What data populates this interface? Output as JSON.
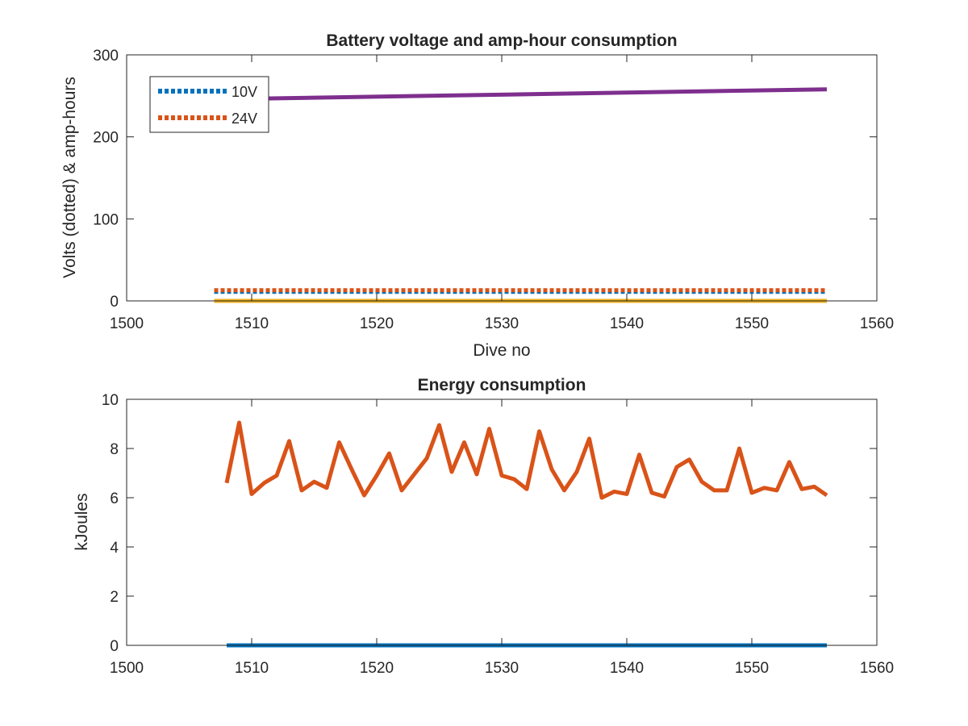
{
  "chart_data": [
    {
      "type": "line",
      "title": "Battery voltage and amp-hour consumption",
      "xlabel": "Dive no",
      "ylabel": "Volts (dotted) & amp-hours",
      "xlim": [
        1500,
        1560
      ],
      "ylim": [
        0,
        300
      ],
      "xticks": [
        1500,
        1510,
        1520,
        1530,
        1540,
        1550,
        1560
      ],
      "yticks": [
        0,
        100,
        200,
        300
      ],
      "legend_position": "top-left",
      "series": [
        {
          "name": "10V",
          "style": "dotted",
          "color": "#0072BD",
          "x": [
            1507,
            1556
          ],
          "y": [
            11,
            11
          ]
        },
        {
          "name": "24V",
          "style": "dotted",
          "color": "#D95319",
          "x": [
            1507,
            1556
          ],
          "y": [
            13,
            13
          ]
        },
        {
          "style": "solid",
          "color": "#EDB120",
          "x": [
            1507,
            1556
          ],
          "y": [
            0,
            0
          ]
        },
        {
          "style": "solid",
          "color": "#7E2F8E",
          "x": [
            1508,
            1556
          ],
          "y": [
            246,
            258
          ]
        }
      ]
    },
    {
      "type": "line",
      "title": "Energy consumption",
      "xlabel": "",
      "ylabel": "kJoules",
      "xlim": [
        1500,
        1560
      ],
      "ylim": [
        0,
        10
      ],
      "xticks": [
        1500,
        1510,
        1520,
        1530,
        1540,
        1550,
        1560
      ],
      "yticks": [
        0,
        2,
        4,
        6,
        8,
        10
      ],
      "series": [
        {
          "style": "solid",
          "color": "#0072BD",
          "x": [
            1508,
            1556
          ],
          "y": [
            0,
            0
          ]
        },
        {
          "style": "solid",
          "color": "#D95319",
          "x": [
            1508,
            1509,
            1510,
            1511,
            1512,
            1513,
            1514,
            1515,
            1516,
            1517,
            1518,
            1519,
            1520,
            1521,
            1522,
            1523,
            1524,
            1525,
            1526,
            1527,
            1528,
            1529,
            1530,
            1531,
            1532,
            1533,
            1534,
            1535,
            1536,
            1537,
            1538,
            1539,
            1540,
            1541,
            1542,
            1543,
            1544,
            1545,
            1546,
            1547,
            1548,
            1549,
            1550,
            1551,
            1552,
            1553,
            1554,
            1555,
            1556
          ],
          "y": [
            6.6,
            9.05,
            6.15,
            6.6,
            6.9,
            8.3,
            6.3,
            6.65,
            6.4,
            8.25,
            7.15,
            6.1,
            6.9,
            7.8,
            6.3,
            6.95,
            7.6,
            8.95,
            7.05,
            8.25,
            6.95,
            8.8,
            6.9,
            6.75,
            6.35,
            8.7,
            7.15,
            6.3,
            7.05,
            8.4,
            6.0,
            6.25,
            6.15,
            7.75,
            6.2,
            6.05,
            7.25,
            7.55,
            6.65,
            6.3,
            6.3,
            8.0,
            6.2,
            6.4,
            6.3,
            7.45,
            6.35,
            6.45,
            6.1
          ]
        }
      ]
    }
  ]
}
